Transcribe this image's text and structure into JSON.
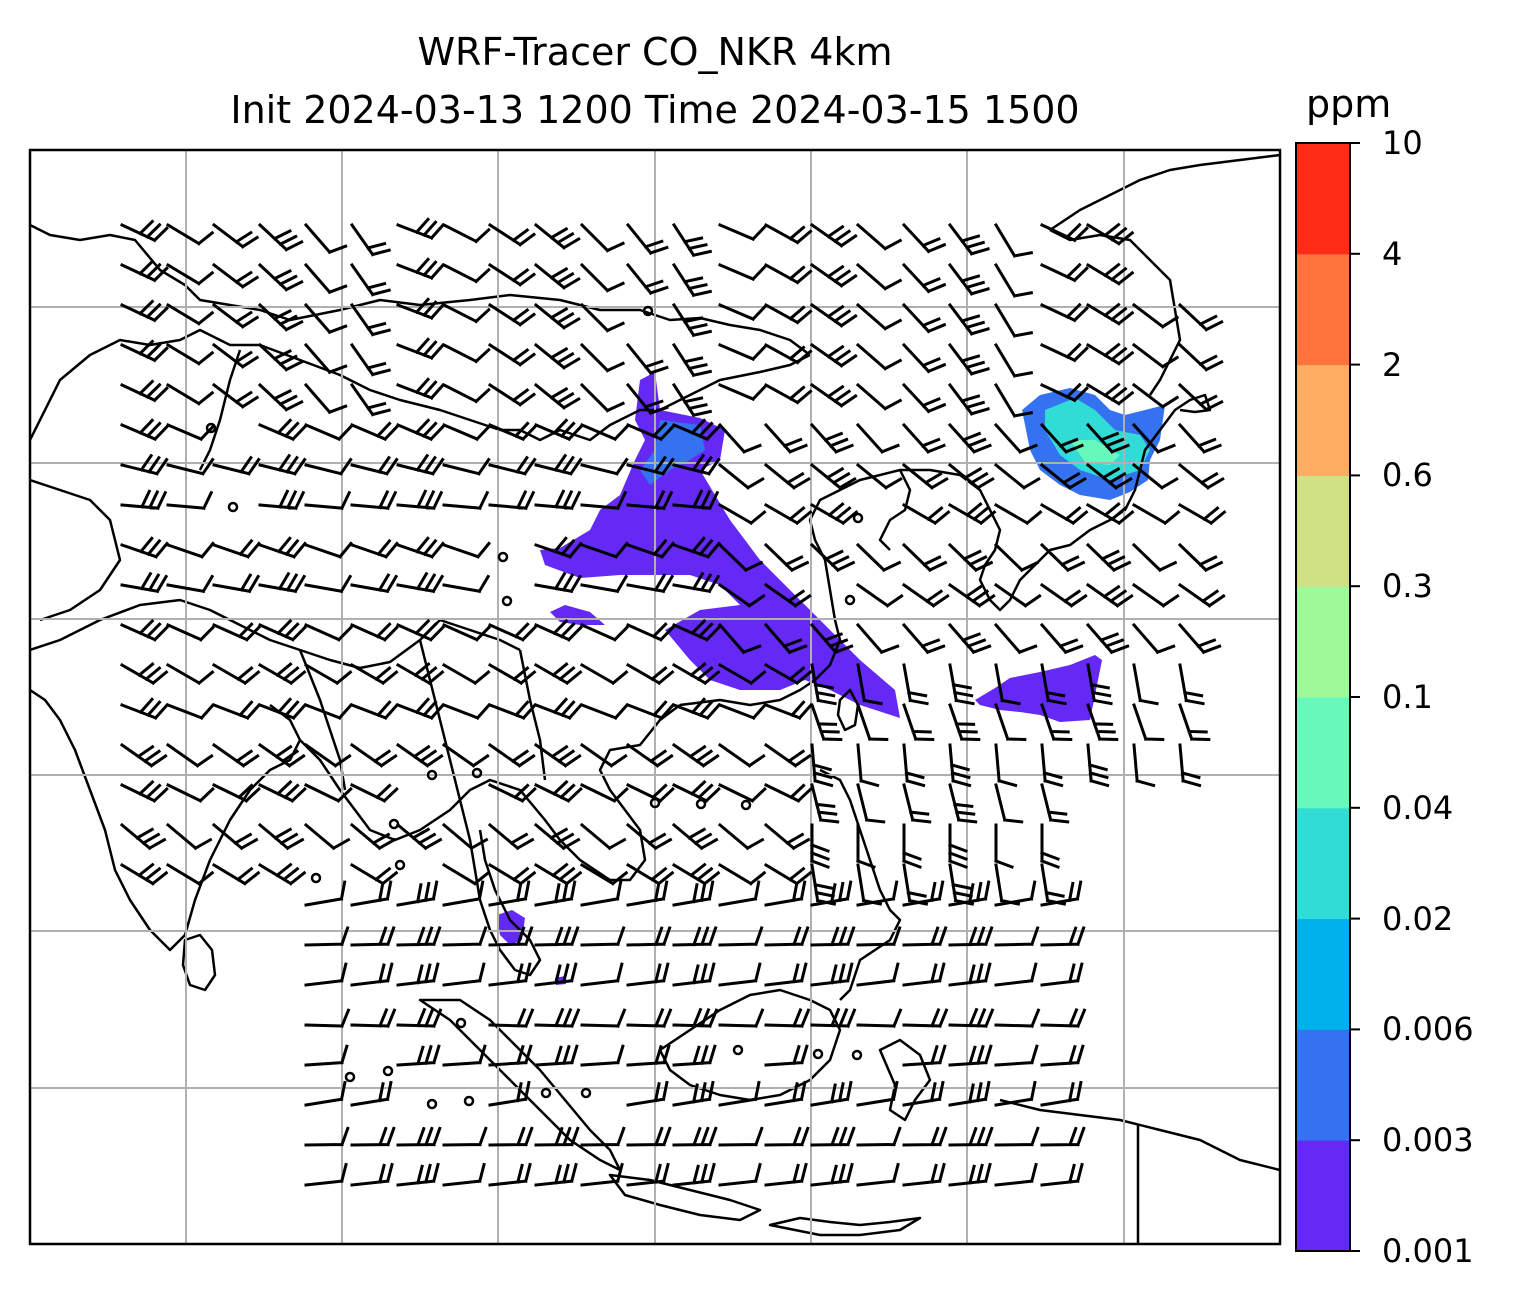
{
  "title": {
    "line1": "WRF-Tracer CO_NKR 4km",
    "line2": "Init 2024-03-13 1200 Time 2024-03-15 1500"
  },
  "colorbar": {
    "unit": "ppm",
    "tick_labels": [
      "0.001",
      "0.003",
      "0.006",
      "0.02",
      "0.04",
      "0.1",
      "0.3",
      "0.6",
      "2",
      "4",
      "10"
    ],
    "colors": [
      "#6429f5",
      "#3472f2",
      "#00b1ea",
      "#31dbd6",
      "#69f8bc",
      "#9efa99",
      "#cfe085",
      "#ffad62",
      "#ff743c",
      "#ff2c18"
    ]
  },
  "map": {
    "gridlines": true,
    "plume_colors": {
      "low": "#6429f5",
      "mid": "#3472f2",
      "high": "#31dbd6",
      "higher": "#69f8bc"
    }
  }
}
